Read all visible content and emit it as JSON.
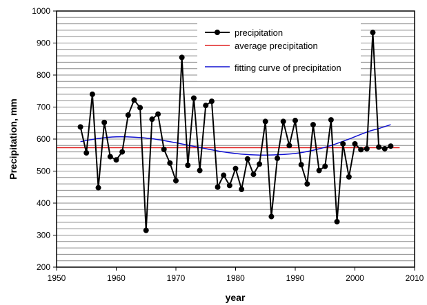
{
  "chart_data": {
    "type": "line",
    "xlabel": "year",
    "ylabel": "Precipitation, mm",
    "xlim": [
      1950,
      2010
    ],
    "ylim": [
      200,
      1000
    ],
    "x_ticks": [
      "1950",
      "1960",
      "1970",
      "1980",
      "1990",
      "2000",
      "2010"
    ],
    "y_ticks": [
      "200",
      "300",
      "400",
      "500",
      "600",
      "700",
      "800",
      "900",
      "1000"
    ],
    "grid": "horizontal lines every 20 mm",
    "legend_position": "top-center",
    "series": [
      {
        "name": "precipitation",
        "color": "#000000",
        "marker": "filled-circle",
        "x": [
          1954,
          1955,
          1956,
          1957,
          1958,
          1959,
          1960,
          1961,
          1962,
          1963,
          1964,
          1965,
          1966,
          1967,
          1968,
          1969,
          1970,
          1971,
          1972,
          1973,
          1974,
          1975,
          1976,
          1977,
          1978,
          1979,
          1980,
          1981,
          1982,
          1983,
          1984,
          1985,
          1986,
          1987,
          1988,
          1989,
          1990,
          1991,
          1992,
          1993,
          1994,
          1995,
          1996,
          1997,
          1998,
          1999,
          2000,
          2001,
          2002,
          2003,
          2004,
          2005,
          2006
        ],
        "y": [
          638,
          557,
          740,
          448,
          652,
          545,
          535,
          560,
          675,
          722,
          698,
          315,
          662,
          678,
          568,
          525,
          470,
          855,
          518,
          728,
          502,
          705,
          718,
          450,
          487,
          455,
          508,
          443,
          538,
          490,
          522,
          655,
          358,
          540,
          655,
          580,
          658,
          520,
          460,
          645,
          502,
          515,
          660,
          342,
          585,
          482,
          585,
          567,
          570,
          933,
          575,
          570,
          578
        ]
      },
      {
        "name": "average precipitation",
        "color": "#e02020",
        "y_value": 573,
        "x_range": [
          1950,
          2007.5
        ]
      },
      {
        "name": "fitting curve of precipitation",
        "color": "#1010d0",
        "x": [
          1954,
          1957,
          1960,
          1963,
          1966,
          1969,
          1972,
          1975,
          1978,
          1981,
          1984,
          1987,
          1990,
          1993,
          1996,
          1999,
          2002,
          2004,
          2006
        ],
        "y": [
          592,
          602,
          607,
          606,
          601,
          592,
          581,
          570,
          560,
          553,
          550,
          551,
          555,
          565,
          580,
          600,
          622,
          633,
          645
        ]
      }
    ]
  }
}
